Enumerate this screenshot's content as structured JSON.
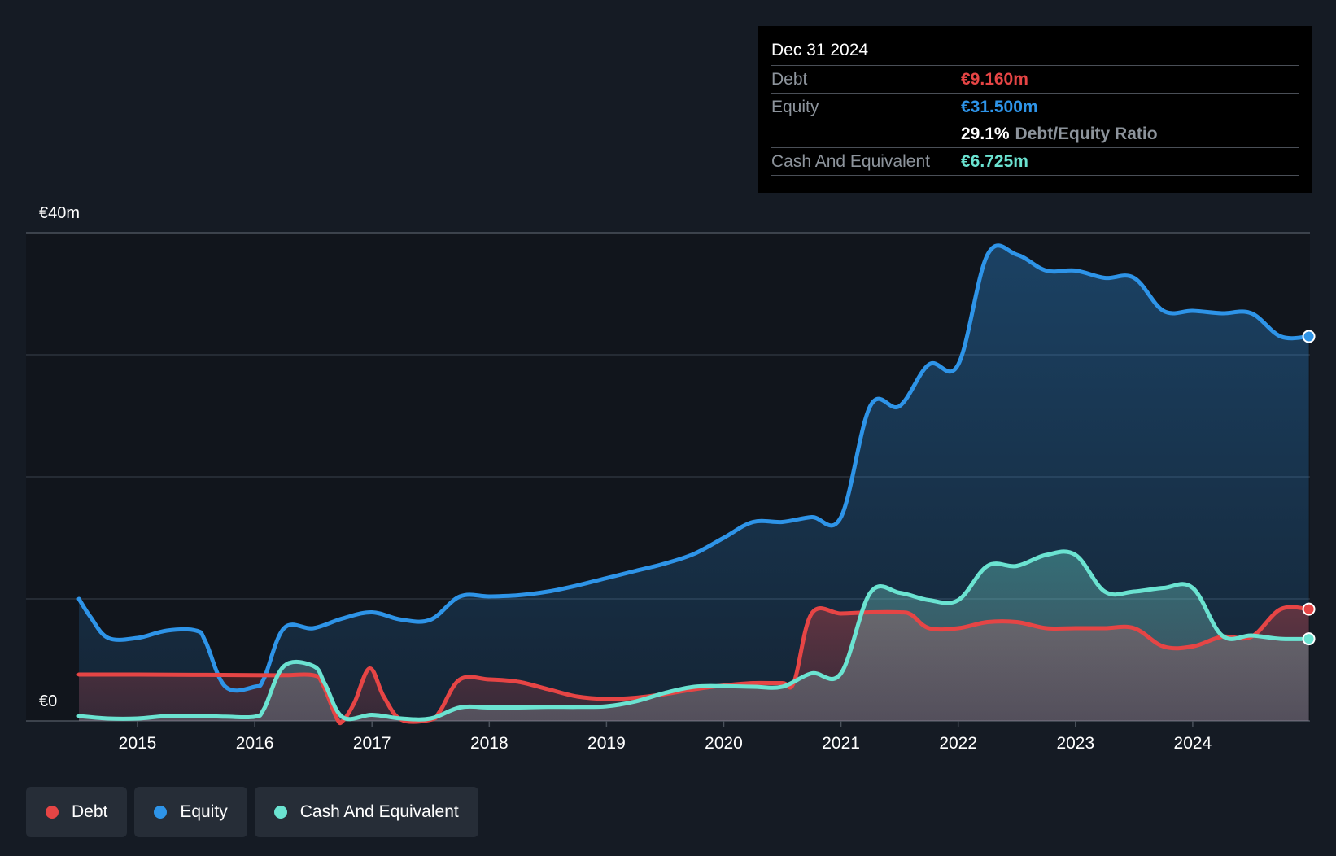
{
  "tooltip": {
    "date": "Dec 31 2024",
    "debt_label": "Debt",
    "debt_value": "€9.160m",
    "equity_label": "Equity",
    "equity_value": "€31.500m",
    "ratio_value": "29.1%",
    "ratio_label": "Debt/Equity Ratio",
    "cash_label": "Cash And Equivalent",
    "cash_value": "€6.725m"
  },
  "legend": {
    "debt": "Debt",
    "equity": "Equity",
    "cash": "Cash And Equivalent"
  },
  "chart_data": {
    "type": "area",
    "x_ticks": [
      "2015",
      "2016",
      "2017",
      "2018",
      "2019",
      "2020",
      "2021",
      "2022",
      "2023",
      "2024"
    ],
    "y_tick_labels": {
      "max": "€40m",
      "min": "€0"
    },
    "ylim": [
      0,
      40
    ],
    "grid": true,
    "legend_position": "bottom-left",
    "colors": {
      "debt": "#e64545",
      "equity": "#2e94e8",
      "cash": "#6be3d1"
    },
    "series": [
      {
        "name": "Debt",
        "points": [
          [
            2014.5,
            3.8
          ],
          [
            2015.0,
            3.8
          ],
          [
            2016.0,
            3.75
          ],
          [
            2016.25,
            3.75
          ],
          [
            2016.5,
            3.75
          ],
          [
            2016.58,
            3.0
          ],
          [
            2016.7,
            0.2
          ],
          [
            2016.75,
            0.0
          ],
          [
            2016.85,
            1.5
          ],
          [
            2016.98,
            4.3
          ],
          [
            2017.1,
            2.0
          ],
          [
            2017.25,
            0.1
          ],
          [
            2017.5,
            0.1
          ],
          [
            2017.58,
            0.8
          ],
          [
            2017.75,
            3.4
          ],
          [
            2018.0,
            3.4
          ],
          [
            2018.25,
            3.2
          ],
          [
            2018.5,
            2.6
          ],
          [
            2018.75,
            2.0
          ],
          [
            2019.0,
            1.8
          ],
          [
            2019.25,
            1.9
          ],
          [
            2019.5,
            2.2
          ],
          [
            2019.75,
            2.6
          ],
          [
            2020.0,
            2.9
          ],
          [
            2020.25,
            3.1
          ],
          [
            2020.5,
            3.1
          ],
          [
            2020.6,
            3.2
          ],
          [
            2020.75,
            8.8
          ],
          [
            2021.0,
            8.8
          ],
          [
            2021.25,
            8.9
          ],
          [
            2021.5,
            8.9
          ],
          [
            2021.6,
            8.7
          ],
          [
            2021.75,
            7.6
          ],
          [
            2022.0,
            7.6
          ],
          [
            2022.25,
            8.1
          ],
          [
            2022.5,
            8.1
          ],
          [
            2022.75,
            7.6
          ],
          [
            2023.0,
            7.6
          ],
          [
            2023.25,
            7.6
          ],
          [
            2023.5,
            7.6
          ],
          [
            2023.75,
            6.1
          ],
          [
            2024.0,
            6.1
          ],
          [
            2024.25,
            6.9
          ],
          [
            2024.5,
            6.9
          ],
          [
            2024.75,
            9.16
          ],
          [
            2024.99,
            9.16
          ]
        ]
      },
      {
        "name": "Equity",
        "points": [
          [
            2014.5,
            10.0
          ],
          [
            2014.6,
            8.5
          ],
          [
            2014.75,
            6.8
          ],
          [
            2015.0,
            6.8
          ],
          [
            2015.25,
            7.4
          ],
          [
            2015.5,
            7.4
          ],
          [
            2015.58,
            6.5
          ],
          [
            2015.75,
            2.8
          ],
          [
            2016.0,
            2.8
          ],
          [
            2016.08,
            3.5
          ],
          [
            2016.25,
            7.6
          ],
          [
            2016.5,
            7.6
          ],
          [
            2016.75,
            8.4
          ],
          [
            2017.0,
            8.9
          ],
          [
            2017.25,
            8.3
          ],
          [
            2017.5,
            8.3
          ],
          [
            2017.75,
            10.2
          ],
          [
            2018.0,
            10.2
          ],
          [
            2018.25,
            10.3
          ],
          [
            2018.5,
            10.6
          ],
          [
            2018.75,
            11.1
          ],
          [
            2019.0,
            11.7
          ],
          [
            2019.25,
            12.3
          ],
          [
            2019.5,
            12.9
          ],
          [
            2019.75,
            13.7
          ],
          [
            2020.0,
            15.0
          ],
          [
            2020.25,
            16.3
          ],
          [
            2020.5,
            16.3
          ],
          [
            2020.75,
            16.7
          ],
          [
            2021.0,
            16.7
          ],
          [
            2021.25,
            25.8
          ],
          [
            2021.5,
            25.8
          ],
          [
            2021.75,
            29.2
          ],
          [
            2022.0,
            29.2
          ],
          [
            2022.25,
            38.2
          ],
          [
            2022.5,
            38.2
          ],
          [
            2022.75,
            36.9
          ],
          [
            2023.0,
            36.9
          ],
          [
            2023.25,
            36.3
          ],
          [
            2023.5,
            36.3
          ],
          [
            2023.75,
            33.6
          ],
          [
            2024.0,
            33.6
          ],
          [
            2024.25,
            33.4
          ],
          [
            2024.5,
            33.4
          ],
          [
            2024.75,
            31.5
          ],
          [
            2024.99,
            31.5
          ]
        ]
      },
      {
        "name": "Cash And Equivalent",
        "points": [
          [
            2014.5,
            0.4
          ],
          [
            2014.75,
            0.2
          ],
          [
            2015.0,
            0.2
          ],
          [
            2015.25,
            0.4
          ],
          [
            2015.5,
            0.4
          ],
          [
            2015.75,
            0.35
          ],
          [
            2016.0,
            0.35
          ],
          [
            2016.08,
            1.0
          ],
          [
            2016.25,
            4.5
          ],
          [
            2016.5,
            4.5
          ],
          [
            2016.6,
            3.0
          ],
          [
            2016.75,
            0.3
          ],
          [
            2017.0,
            0.5
          ],
          [
            2017.25,
            0.2
          ],
          [
            2017.5,
            0.2
          ],
          [
            2017.75,
            1.1
          ],
          [
            2018.0,
            1.1
          ],
          [
            2018.25,
            1.1
          ],
          [
            2018.5,
            1.15
          ],
          [
            2018.75,
            1.15
          ],
          [
            2019.0,
            1.2
          ],
          [
            2019.25,
            1.6
          ],
          [
            2019.5,
            2.3
          ],
          [
            2019.75,
            2.8
          ],
          [
            2020.0,
            2.85
          ],
          [
            2020.25,
            2.8
          ],
          [
            2020.5,
            2.8
          ],
          [
            2020.75,
            3.9
          ],
          [
            2021.0,
            3.9
          ],
          [
            2021.25,
            10.5
          ],
          [
            2021.5,
            10.5
          ],
          [
            2021.75,
            9.9
          ],
          [
            2022.0,
            9.9
          ],
          [
            2022.25,
            12.7
          ],
          [
            2022.5,
            12.7
          ],
          [
            2022.75,
            13.6
          ],
          [
            2023.0,
            13.6
          ],
          [
            2023.25,
            10.6
          ],
          [
            2023.5,
            10.6
          ],
          [
            2023.75,
            10.9
          ],
          [
            2024.0,
            10.9
          ],
          [
            2024.25,
            7.0
          ],
          [
            2024.5,
            7.0
          ],
          [
            2024.75,
            6.725
          ],
          [
            2024.99,
            6.725
          ]
        ]
      }
    ]
  }
}
